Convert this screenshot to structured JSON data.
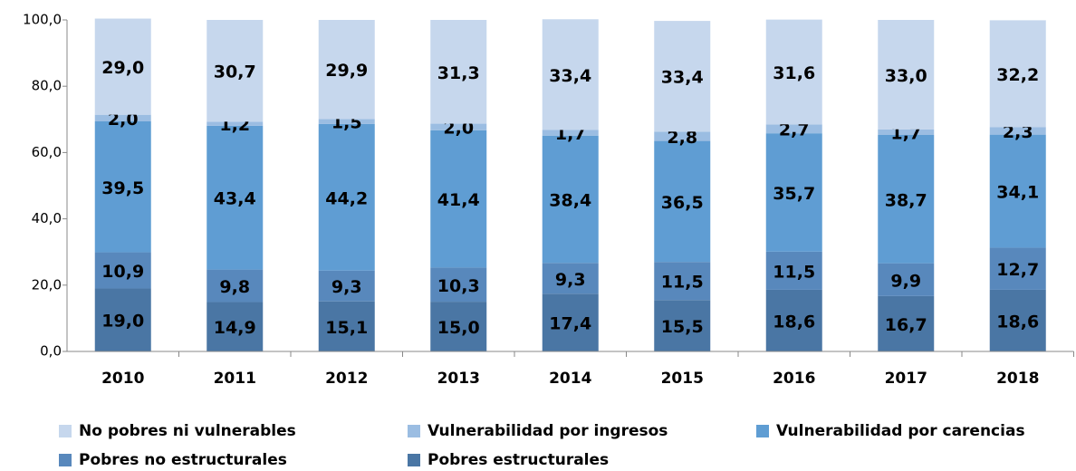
{
  "chart_data": {
    "type": "stacked_bar",
    "categories": [
      "2010",
      "2011",
      "2012",
      "2013",
      "2014",
      "2015",
      "2016",
      "2017",
      "2018"
    ],
    "series": [
      {
        "name": "Pobres estructurales",
        "color": "#4a76a4",
        "values": [
          19.0,
          14.9,
          15.1,
          15.0,
          17.4,
          15.5,
          18.6,
          16.7,
          18.6
        ],
        "value_labels": [
          "19,0",
          "14,9",
          "15,1",
          "15,0",
          "17,4",
          "15,5",
          "18,6",
          "16,7",
          "18,6"
        ]
      },
      {
        "name": "Pobres no estructurales",
        "color": "#5888bc",
        "values": [
          10.9,
          9.8,
          9.3,
          10.3,
          9.3,
          11.5,
          11.5,
          9.9,
          12.7
        ],
        "value_labels": [
          "10,9",
          "9,8",
          "9,3",
          "10,3",
          "9,3",
          "11,5",
          "11,5",
          "9,9",
          "12,7"
        ]
      },
      {
        "name": "Vulnerabilidad por carencias",
        "color": "#5f9dd3",
        "values": [
          39.5,
          43.4,
          44.2,
          41.4,
          38.4,
          36.5,
          35.7,
          38.7,
          34.1
        ],
        "value_labels": [
          "39,5",
          "43,4",
          "44,2",
          "41,4",
          "38,4",
          "36,5",
          "35,7",
          "38,7",
          "34,1"
        ]
      },
      {
        "name": "Vulnerabilidad por ingresos",
        "color": "#9bbde2",
        "values": [
          2.0,
          1.2,
          1.5,
          2.0,
          1.7,
          2.8,
          2.7,
          1.7,
          2.3
        ],
        "value_labels": [
          "2,0",
          "1,2",
          "1,5",
          "2,0",
          "1,7",
          "2,8",
          "2,7",
          "1,7",
          "2,3"
        ]
      },
      {
        "name": "No pobres ni vulnerables",
        "color": "#c6d7ed",
        "values": [
          29.0,
          30.7,
          29.9,
          31.3,
          33.4,
          33.4,
          31.6,
          33.0,
          32.2
        ],
        "value_labels": [
          "29,0",
          "30,7",
          "29,9",
          "31,3",
          "33,4",
          "33,4",
          "31,6",
          "33,0",
          "32,2"
        ]
      }
    ],
    "ylim": [
      0,
      100
    ],
    "yticks": [
      {
        "value": 0,
        "label": "0,0"
      },
      {
        "value": 20,
        "label": "20,0"
      },
      {
        "value": 40,
        "label": "40,0"
      },
      {
        "value": 60,
        "label": "60,0"
      },
      {
        "value": 80,
        "label": "80,0"
      },
      {
        "value": 100,
        "label": "100,0"
      }
    ],
    "legend": "bottom"
  }
}
